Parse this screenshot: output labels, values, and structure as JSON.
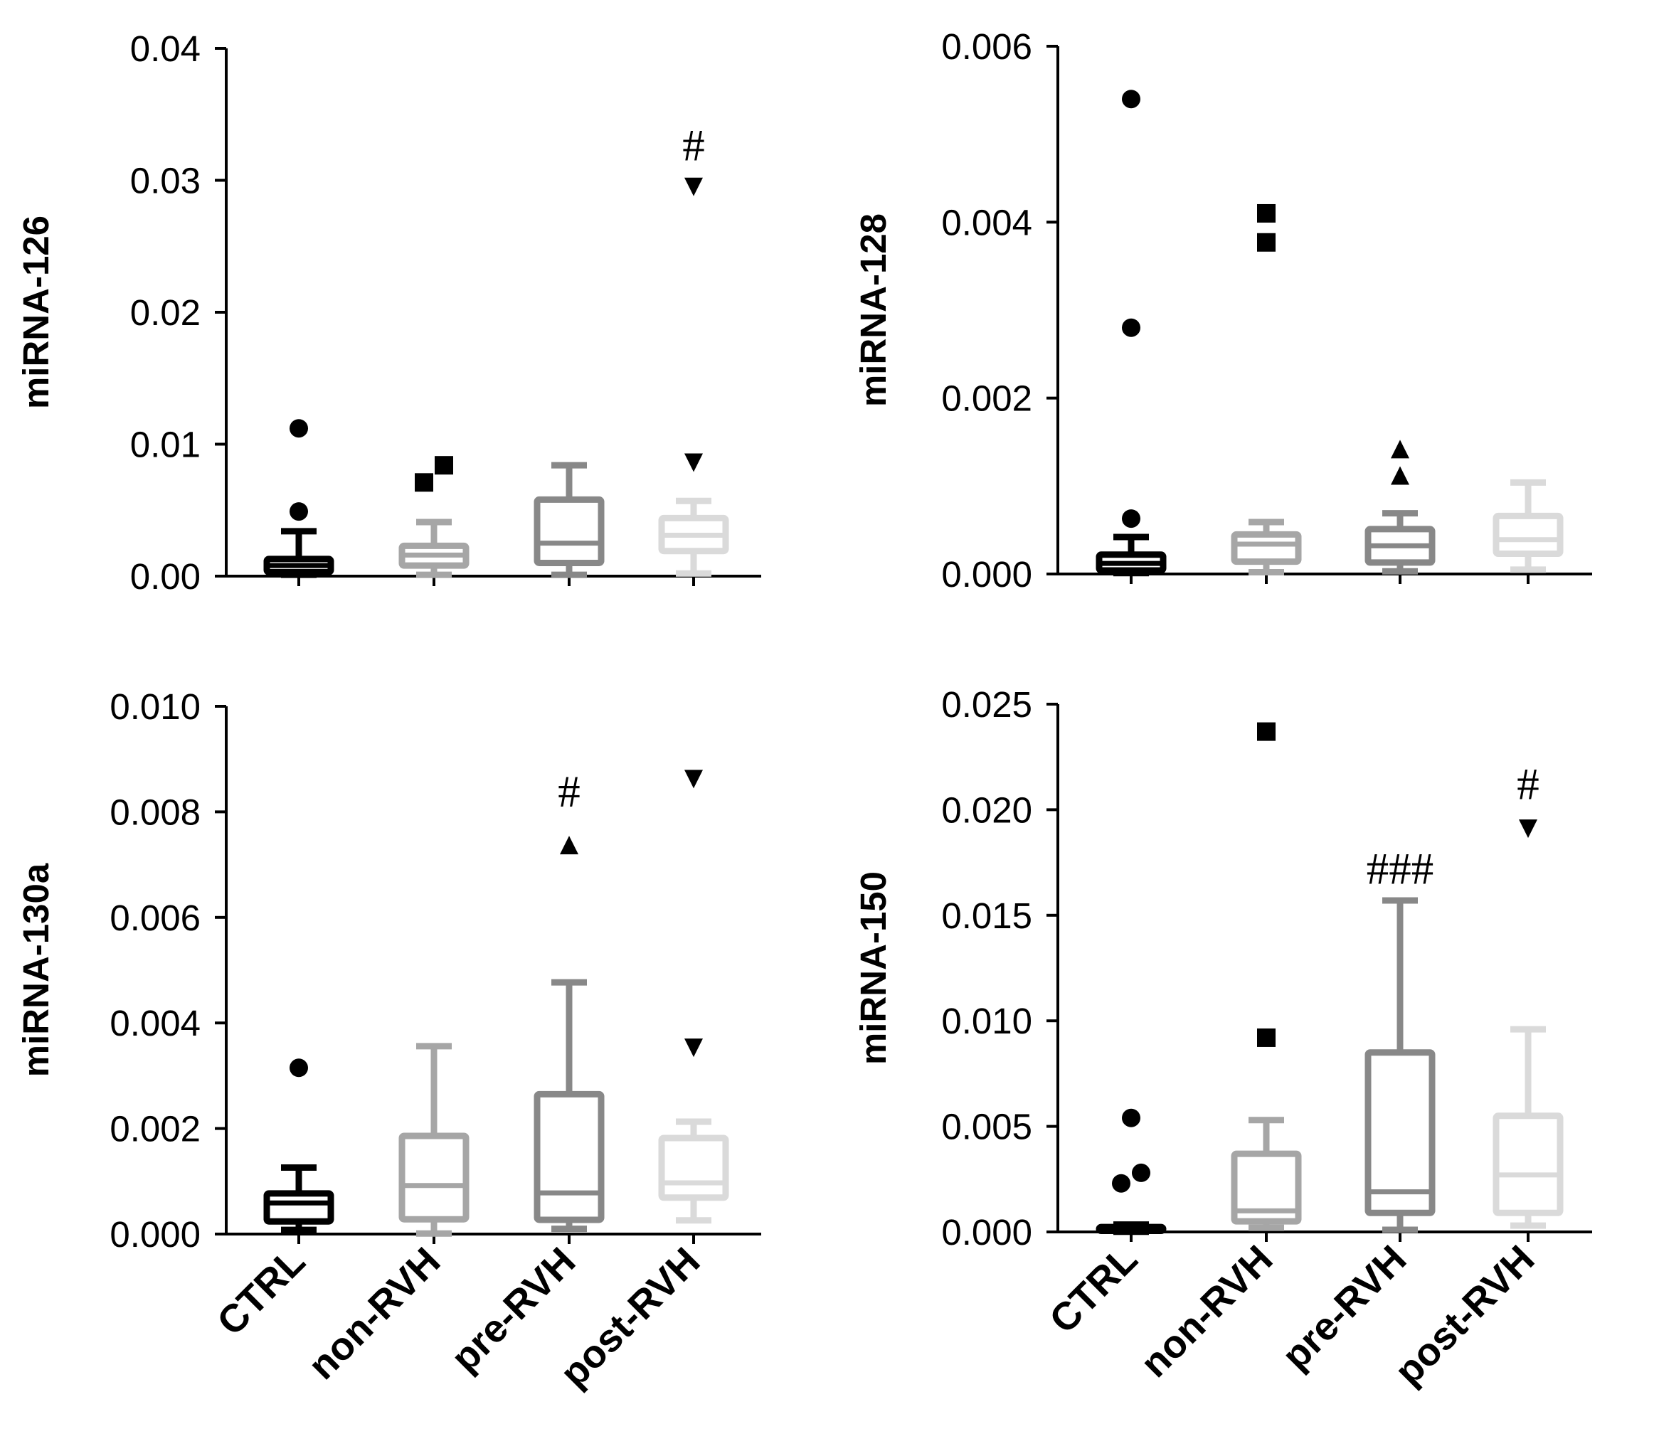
{
  "figure": "miRNA expression box plots",
  "group_colors": {
    "CTRL": "#000000",
    "non-RVH": "#a6a6a6",
    "pre-RVH": "#888888",
    "post-RVH": "#dadada"
  },
  "chart_data": [
    {
      "type": "box",
      "id": "p1",
      "ylabel": "miRNA-126",
      "ylim": [
        0,
        0.04
      ],
      "yticks": [
        "0.00",
        "0.01",
        "0.02",
        "0.03",
        "0.04"
      ],
      "yticks_values": [
        0,
        0.01,
        0.02,
        0.03,
        0.04
      ],
      "show_xlabels": false,
      "categories": [
        "CTRL",
        "non-RVH",
        "pre-RVH",
        "post-RVH"
      ],
      "boxes": [
        {
          "group": "CTRL",
          "min": 0.0001,
          "q1": 0.0003,
          "median": 0.0008,
          "q3": 0.0013,
          "max": 0.0034,
          "outliers": [
            0.0112,
            0.0049
          ],
          "marker": "circle"
        },
        {
          "group": "non-RVH",
          "min": 0.0001,
          "q1": 0.0008,
          "median": 0.0016,
          "q3": 0.0023,
          "max": 0.0041,
          "outliers": [
            0.0084,
            0.0071
          ],
          "marker": "square"
        },
        {
          "group": "pre-RVH",
          "min": 0.0001,
          "q1": 0.001,
          "median": 0.0025,
          "q3": 0.0058,
          "max": 0.0084,
          "outliers": [],
          "marker": "triangle-up"
        },
        {
          "group": "post-RVH",
          "min": 0.0002,
          "q1": 0.0019,
          "median": 0.0031,
          "q3": 0.0044,
          "max": 0.0057,
          "outliers": [
            0.0295,
            0.0086
          ],
          "marker": "triangle-down"
        }
      ],
      "annotations": [
        {
          "group": "post-RVH",
          "text": "#",
          "y": 0.0315
        }
      ]
    },
    {
      "type": "box",
      "id": "p2",
      "ylabel": "miRNA-128",
      "ylim": [
        0,
        0.006
      ],
      "yticks": [
        "0.000",
        "0.002",
        "0.004",
        "0.006"
      ],
      "yticks_values": [
        0,
        0.002,
        0.004,
        0.006
      ],
      "show_xlabels": false,
      "categories": [
        "CTRL",
        "non-RVH",
        "pre-RVH",
        "post-RVH"
      ],
      "boxes": [
        {
          "group": "CTRL",
          "min": 1e-05,
          "q1": 4e-05,
          "median": 0.00012,
          "q3": 0.00022,
          "max": 0.00042,
          "outliers": [
            0.0054,
            0.0028,
            0.00063
          ],
          "marker": "circle"
        },
        {
          "group": "non-RVH",
          "min": 2e-05,
          "q1": 0.00014,
          "median": 0.00034,
          "q3": 0.00045,
          "max": 0.00059,
          "outliers": [
            0.0041,
            0.00377
          ],
          "marker": "square"
        },
        {
          "group": "pre-RVH",
          "min": 3e-05,
          "q1": 0.00013,
          "median": 0.00032,
          "q3": 0.00051,
          "max": 0.00069,
          "outliers": [
            0.00142,
            0.00112
          ],
          "marker": "triangle-up"
        },
        {
          "group": "post-RVH",
          "min": 5e-05,
          "q1": 0.00023,
          "median": 0.00039,
          "q3": 0.00066,
          "max": 0.00104,
          "outliers": [],
          "marker": "triangle-down"
        }
      ],
      "annotations": []
    },
    {
      "type": "box",
      "id": "p3",
      "ylabel": "miRNA-130a",
      "ylim": [
        0,
        0.01
      ],
      "yticks": [
        "0.000",
        "0.002",
        "0.004",
        "0.006",
        "0.008",
        "0.010"
      ],
      "yticks_values": [
        0,
        0.002,
        0.004,
        0.006,
        0.008,
        0.01
      ],
      "show_xlabels": true,
      "categories": [
        "CTRL",
        "non-RVH",
        "pre-RVH",
        "post-RVH"
      ],
      "boxes": [
        {
          "group": "CTRL",
          "min": 8e-05,
          "q1": 0.00024,
          "median": 0.00059,
          "q3": 0.00077,
          "max": 0.00126,
          "outliers": [
            0.00315
          ],
          "marker": "circle"
        },
        {
          "group": "non-RVH",
          "min": 1e-05,
          "q1": 0.00028,
          "median": 0.00092,
          "q3": 0.00186,
          "max": 0.00356,
          "outliers": [],
          "marker": "square"
        },
        {
          "group": "pre-RVH",
          "min": 0.0001,
          "q1": 0.00027,
          "median": 0.00078,
          "q3": 0.00265,
          "max": 0.00477,
          "outliers": [
            0.00737
          ],
          "marker": "triangle-up"
        },
        {
          "group": "post-RVH",
          "min": 0.00026,
          "q1": 0.00069,
          "median": 0.00097,
          "q3": 0.00182,
          "max": 0.00213,
          "outliers": [
            0.00862,
            0.00353
          ],
          "marker": "triangle-down"
        }
      ],
      "annotations": [
        {
          "group": "pre-RVH",
          "text": "#",
          "y": 0.0081
        }
      ]
    },
    {
      "type": "box",
      "id": "p4",
      "ylabel": "miRNA-150",
      "ylim": [
        0,
        0.025
      ],
      "yticks": [
        "0.000",
        "0.005",
        "0.010",
        "0.015",
        "0.020",
        "0.025"
      ],
      "yticks_values": [
        0,
        0.005,
        0.01,
        0.015,
        0.02,
        0.025
      ],
      "show_xlabels": true,
      "categories": [
        "CTRL",
        "non-RVH",
        "pre-RVH",
        "post-RVH"
      ],
      "boxes": [
        {
          "group": "CTRL",
          "min": 1e-05,
          "q1": 5e-05,
          "median": 0.00012,
          "q3": 0.00023,
          "max": 0.00035,
          "outliers": [
            0.0054,
            0.0028,
            0.0023
          ],
          "marker": "circle"
        },
        {
          "group": "non-RVH",
          "min": 0.0002,
          "q1": 0.0005,
          "median": 0.001,
          "q3": 0.0037,
          "max": 0.0053,
          "outliers": [
            0.0237,
            0.0092
          ],
          "marker": "square"
        },
        {
          "group": "pre-RVH",
          "min": 0.0001,
          "q1": 0.0009,
          "median": 0.0019,
          "q3": 0.0085,
          "max": 0.0157,
          "outliers": [],
          "marker": "triangle-up"
        },
        {
          "group": "post-RVH",
          "min": 0.0003,
          "q1": 0.0009,
          "median": 0.0027,
          "q3": 0.0055,
          "max": 0.0096,
          "outliers": [
            0.0191
          ],
          "marker": "triangle-down"
        }
      ],
      "annotations": [
        {
          "group": "pre-RVH",
          "text": "###",
          "y": 0.0165
        },
        {
          "group": "post-RVH",
          "text": "#",
          "y": 0.0205
        }
      ]
    }
  ]
}
